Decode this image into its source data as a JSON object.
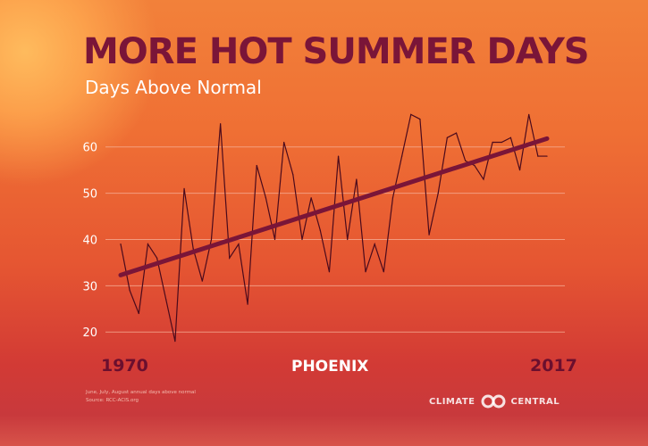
{
  "header": {
    "title": "MORE HOT SUMMER DAYS",
    "subtitle": "Days Above Normal"
  },
  "location": "PHOENIX",
  "footnote": {
    "line1": "June, July, August annual days above normal",
    "line2": "Source: RCC-ACIS.org"
  },
  "logo": {
    "left_word": "CLIMATE",
    "right_word": "CENTRAL"
  },
  "colors": {
    "line": "#4a0a1c",
    "trend": "#7a1538",
    "grid": "#f6b29a",
    "tick_text": "#ffffff",
    "title": "#7a1538"
  },
  "chart_data": {
    "type": "line",
    "x_start_label": "1970",
    "x_end_label": "2017",
    "xlim": [
      1970,
      2017
    ],
    "ylim": [
      16,
      69
    ],
    "yticks": [
      20,
      30,
      40,
      50,
      60
    ],
    "grid": true,
    "series": [
      {
        "kind": "annual",
        "x": [
          1970,
          1971,
          1972,
          1973,
          1974,
          1975,
          1976,
          1977,
          1978,
          1979,
          1980,
          1981,
          1982,
          1983,
          1984,
          1985,
          1986,
          1987,
          1988,
          1989,
          1990,
          1991,
          1992,
          1993,
          1994,
          1995,
          1996,
          1997,
          1998,
          1999,
          2000,
          2001,
          2002,
          2003,
          2004,
          2005,
          2006,
          2007,
          2008,
          2009,
          2010,
          2011,
          2012,
          2013,
          2014,
          2015,
          2016,
          2017
        ],
        "y": [
          39,
          29,
          24,
          39,
          36,
          27,
          18,
          51,
          38,
          31,
          40,
          65,
          36,
          39,
          26,
          56,
          49,
          40,
          61,
          54,
          40,
          49,
          42,
          33,
          58,
          40,
          53,
          33,
          39,
          33,
          49,
          58,
          67,
          66,
          41,
          50,
          62,
          63,
          57,
          56,
          53,
          61,
          61,
          62,
          55,
          67,
          58,
          58
        ]
      },
      {
        "kind": "trend",
        "x": [
          1970,
          2017
        ],
        "y": [
          32.3,
          61.8
        ]
      }
    ]
  }
}
